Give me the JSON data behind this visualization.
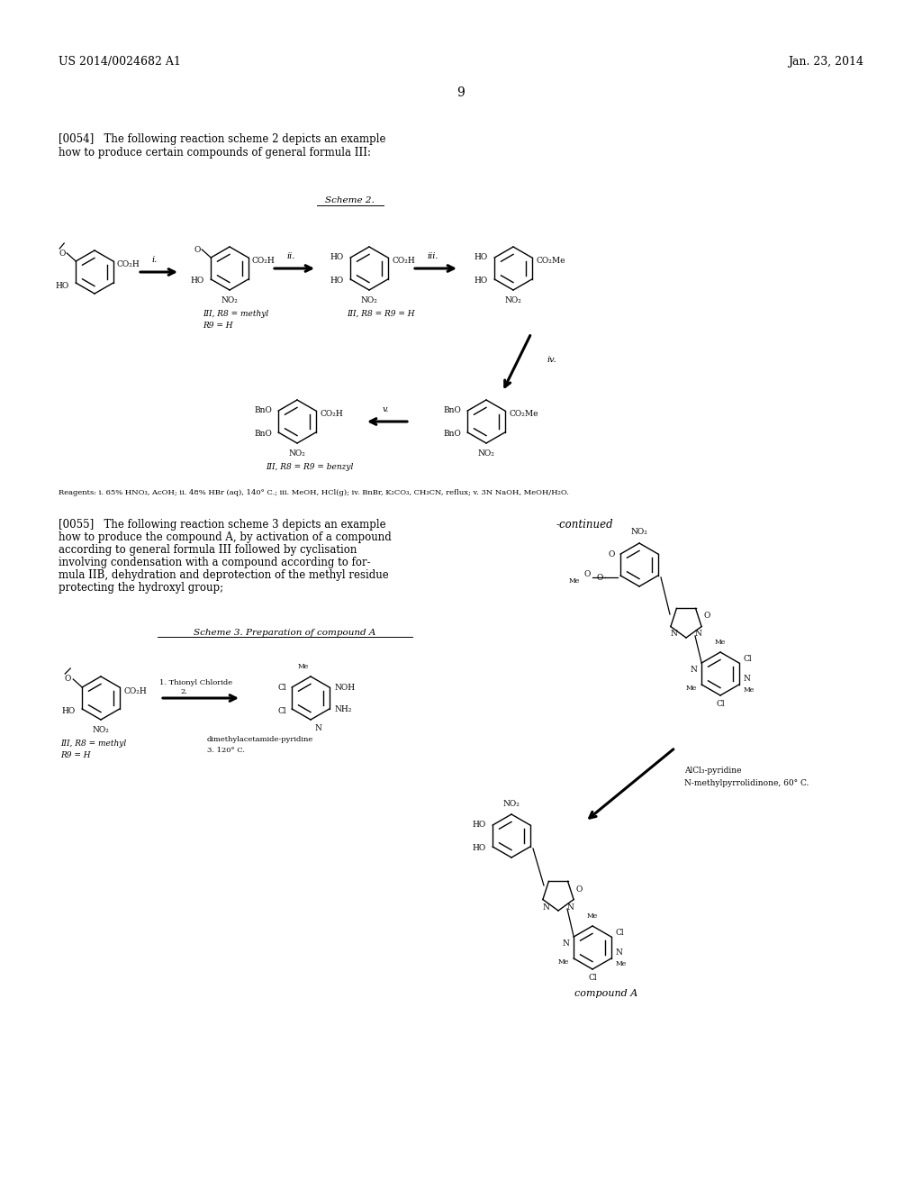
{
  "background_color": "#ffffff",
  "header_left": "US 2014/0024682 A1",
  "header_right": "Jan. 23, 2014",
  "page_number": "9",
  "para_0054_line1": "[0054]   The following reaction scheme 2 depicts an example",
  "para_0054_line2": "how to produce certain compounds of general formula III:",
  "scheme2_label": "Scheme 2.",
  "reagents_line": "Reagents: i. 65% HNO₃, AcOH; ii. 48% HBr (aq), 140° C.; iii. MeOH, HCl(g); iv. BnBr, K₂CO₃, CH₃CN, reflux; v. 3N NaOH, MeOH/H₂O.",
  "para_0055_line1": "[0055]   The following reaction scheme 3 depicts an example",
  "para_0055_line2": "how to produce the compound A, by activation of a compound",
  "para_0055_line3": "according to general formula III followed by cyclisation",
  "para_0055_line4": "involving condensation with a compound according to for-",
  "para_0055_line5": "mula IIB, dehydration and deprotection of the methyl residue",
  "para_0055_line6": "protecting the hydroxyl group;",
  "continued_label": "-continued",
  "scheme3_label": "Scheme 3. Preparation of compound A",
  "compound_a_label": "compound A",
  "iii_r8methyl": "III, R8 = methyl",
  "iii_r9h": "R9 = H",
  "iii_r8r9h": "III, R8 = R9 = H",
  "iii_r8r9benzyl": "III, R8 = R9 = benzyl"
}
